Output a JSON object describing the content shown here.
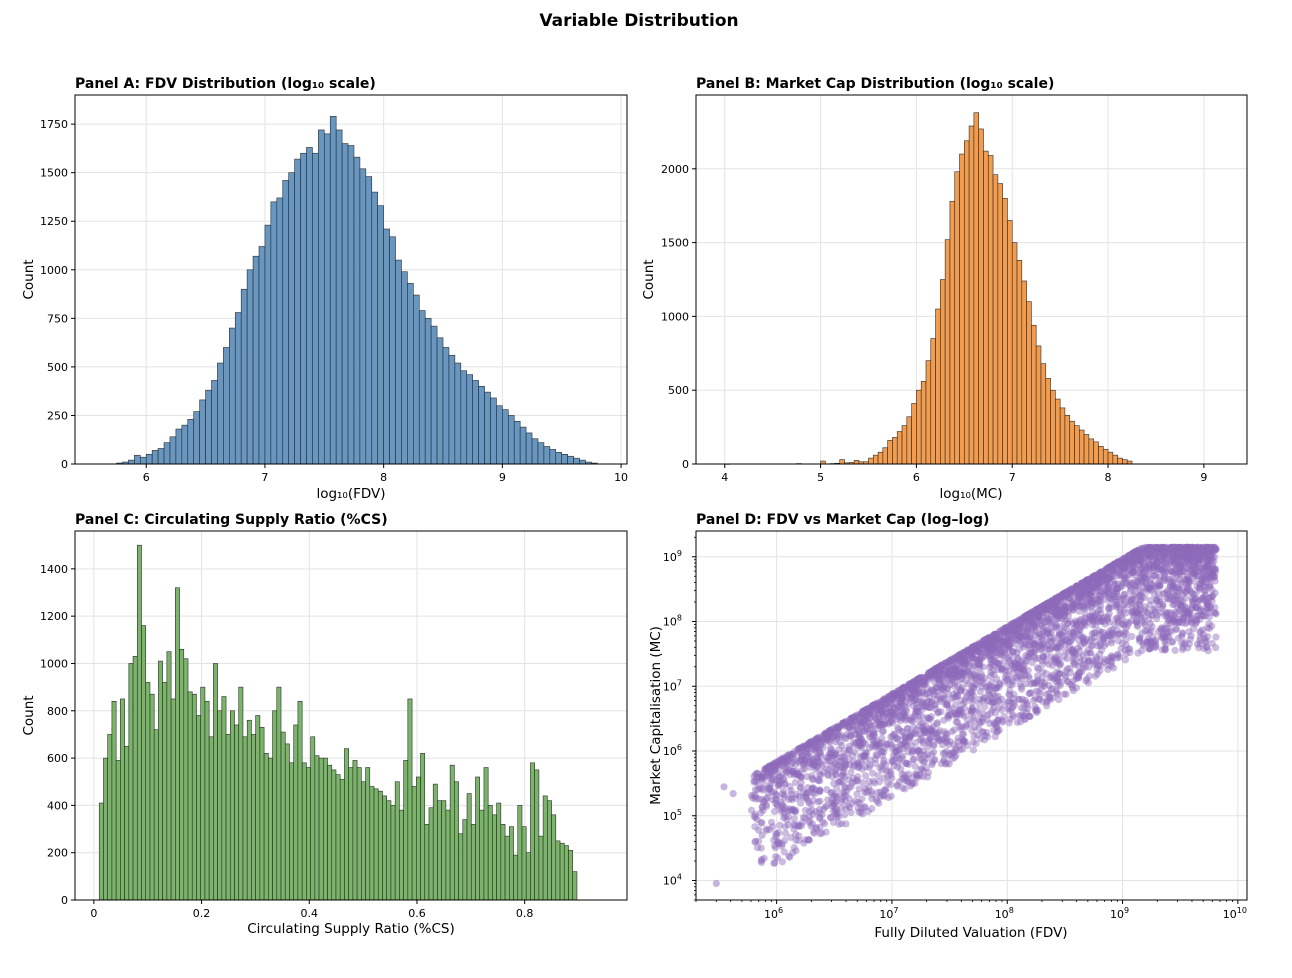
{
  "title": "Variable Distribution",
  "colors": {
    "blue": "#6796c1",
    "orange": "#f39c4e",
    "green": "#7ab56a",
    "purple": "#8e6bbb",
    "edge": "#2b2b2b"
  },
  "chart_data": [
    {
      "type": "bar",
      "title": "Panel A: FDV Distribution (log₁₀ scale)",
      "xlabel": "log₁₀(FDV)",
      "ylabel": "Count",
      "xlim": [
        5.4,
        10.05
      ],
      "ylim": [
        0,
        1900
      ],
      "xticks": [
        6,
        7,
        8,
        9,
        10
      ],
      "yticks": [
        0,
        250,
        500,
        750,
        1000,
        1250,
        1500,
        1750
      ],
      "bin_start": 5.75,
      "bin_width": 0.05,
      "values": [
        5,
        10,
        20,
        45,
        35,
        50,
        70,
        80,
        110,
        140,
        180,
        200,
        230,
        270,
        330,
        380,
        430,
        520,
        600,
        700,
        780,
        900,
        1000,
        1070,
        1120,
        1230,
        1350,
        1370,
        1460,
        1500,
        1570,
        1600,
        1630,
        1600,
        1720,
        1700,
        1790,
        1720,
        1650,
        1640,
        1580,
        1520,
        1480,
        1400,
        1330,
        1210,
        1170,
        1050,
        990,
        930,
        870,
        790,
        750,
        710,
        650,
        600,
        560,
        520,
        480,
        460,
        430,
        400,
        370,
        340,
        300,
        280,
        250,
        220,
        190,
        160,
        130,
        110,
        90,
        75,
        60,
        50,
        40,
        30,
        20,
        10,
        5
      ]
    },
    {
      "type": "bar",
      "title": "Panel B: Market Cap Distribution (log₁₀ scale)",
      "xlabel": "log₁₀(MC)",
      "ylabel": "Count",
      "xlim": [
        3.7,
        9.45
      ],
      "ylim": [
        0,
        2500
      ],
      "xticks": [
        4,
        5,
        6,
        7,
        8,
        9
      ],
      "yticks": [
        0,
        500,
        1000,
        1500,
        2000
      ],
      "bin_start": 4.0,
      "bin_width": 0.05,
      "values": [
        1,
        0,
        0,
        0,
        0,
        0,
        0,
        0,
        0,
        0,
        0,
        0,
        0,
        0,
        0,
        3,
        0,
        0,
        0,
        0,
        20,
        0,
        3,
        5,
        30,
        8,
        10,
        25,
        15,
        15,
        40,
        60,
        80,
        110,
        160,
        180,
        220,
        260,
        320,
        410,
        500,
        560,
        700,
        850,
        1050,
        1250,
        1520,
        1780,
        1980,
        2100,
        2190,
        2290,
        2380,
        2270,
        2120,
        2090,
        1960,
        1900,
        1800,
        1650,
        1500,
        1380,
        1240,
        1100,
        940,
        800,
        680,
        580,
        500,
        440,
        380,
        330,
        290,
        260,
        230,
        200,
        170,
        150,
        120,
        100,
        80,
        60,
        40,
        30,
        20
      ]
    },
    {
      "type": "bar",
      "title": "Panel C: Circulating Supply Ratio (%CS)",
      "xlabel": "Circulating Supply Ratio (%CS)",
      "ylabel": "Count",
      "xlim": [
        -0.035,
        0.99
      ],
      "ylim": [
        0,
        1560
      ],
      "xticks": [
        0.0,
        0.2,
        0.4,
        0.6,
        0.8
      ],
      "yticks": [
        0,
        200,
        400,
        600,
        800,
        1000,
        1200,
        1400
      ],
      "bin_start": 0.01,
      "bin_width": 0.00785,
      "values": [
        410,
        600,
        700,
        840,
        590,
        850,
        650,
        1000,
        1030,
        1500,
        1160,
        920,
        870,
        720,
        1010,
        920,
        1050,
        850,
        1320,
        1060,
        1020,
        880,
        870,
        780,
        900,
        840,
        690,
        1000,
        800,
        860,
        700,
        800,
        740,
        900,
        690,
        760,
        700,
        780,
        730,
        620,
        600,
        800,
        900,
        710,
        660,
        580,
        740,
        840,
        580,
        560,
        690,
        610,
        600,
        600,
        570,
        550,
        530,
        510,
        640,
        560,
        590,
        560,
        500,
        560,
        480,
        470,
        460,
        440,
        420,
        400,
        500,
        380,
        590,
        850,
        480,
        520,
        620,
        320,
        390,
        490,
        420,
        420,
        380,
        570,
        500,
        280,
        340,
        450,
        320,
        520,
        380,
        560,
        400,
        360,
        410,
        320,
        270,
        310,
        190,
        400,
        310,
        200,
        580,
        550,
        270,
        440,
        420,
        360,
        250,
        240,
        230,
        210,
        120
      ]
    },
    {
      "type": "scatter",
      "title": "Panel D: FDV vs Market Cap (log–log)",
      "xlabel": "Fully Diluted Valuation (FDV)",
      "ylabel": "Market Capitalisation (MC)",
      "xscale": "log",
      "yscale": "log",
      "xlim": [
        200000,
        12000000000
      ],
      "ylim": [
        5000,
        2500000000
      ],
      "xticks": [
        1000000,
        10000000,
        100000000,
        1000000000,
        10000000000
      ],
      "xtick_base": [
        "10",
        "10",
        "10",
        "10",
        "10"
      ],
      "xtick_exp": [
        "6",
        "7",
        "8",
        "9",
        "10"
      ],
      "yticks": [
        10000,
        100000,
        1000000,
        10000000,
        100000000,
        1000000000
      ],
      "ytick_base": [
        "10",
        "10",
        "10",
        "10",
        "10",
        "10"
      ],
      "ytick_exp": [
        "4",
        "5",
        "6",
        "7",
        "8",
        "9"
      ],
      "upper_envelope": {
        "x": [
          600000,
          1500000000
        ],
        "y": [
          400000,
          1400000000
        ]
      },
      "fdv_max": 6500000000,
      "outliers": [
        {
          "x": 300000,
          "y": 9000
        },
        {
          "x": 350000,
          "y": 280000
        },
        {
          "x": 420000,
          "y": 220000
        },
        {
          "x": 700000,
          "y": 60000
        },
        {
          "x": 750000,
          "y": 50000
        }
      ]
    }
  ]
}
